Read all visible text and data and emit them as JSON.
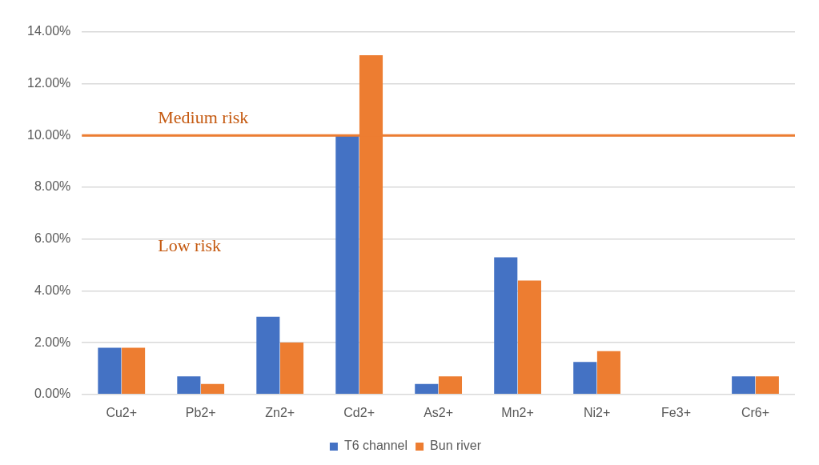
{
  "chart_data": {
    "type": "bar",
    "categories": [
      "Cu2+",
      "Pb2+",
      "Zn2+",
      "Cd2+",
      "As2+",
      "Mn2+",
      "Ni2+",
      "Fe3+",
      "Cr6+"
    ],
    "series": [
      {
        "name": "T6 channel",
        "color": "#4472c4",
        "values": [
          1.8,
          0.7,
          3.0,
          10.0,
          0.4,
          5.3,
          1.25,
          0,
          0.7
        ]
      },
      {
        "name": "Bun river",
        "color": "#ed7d31",
        "values": [
          1.8,
          0.4,
          2.0,
          13.1,
          0.7,
          4.4,
          1.67,
          0,
          0.7
        ]
      }
    ],
    "ylim": [
      0,
      14
    ],
    "yticks": [
      {
        "value": 0,
        "label": "0.00%"
      },
      {
        "value": 2,
        "label": "2.00%"
      },
      {
        "value": 4,
        "label": "4.00%"
      },
      {
        "value": 6,
        "label": "6.00%"
      },
      {
        "value": 8,
        "label": "8.00%"
      },
      {
        "value": 10,
        "label": "10.00%"
      },
      {
        "value": 12,
        "label": "12.00%"
      },
      {
        "value": 14,
        "label": "14.00%"
      }
    ],
    "ref_lines": [
      {
        "axis": "y",
        "value": 10,
        "label": "Medium risk",
        "color": "#ed7d31"
      }
    ],
    "annotations": [
      "Low risk"
    ],
    "grid": "y",
    "legend": "bottom"
  }
}
